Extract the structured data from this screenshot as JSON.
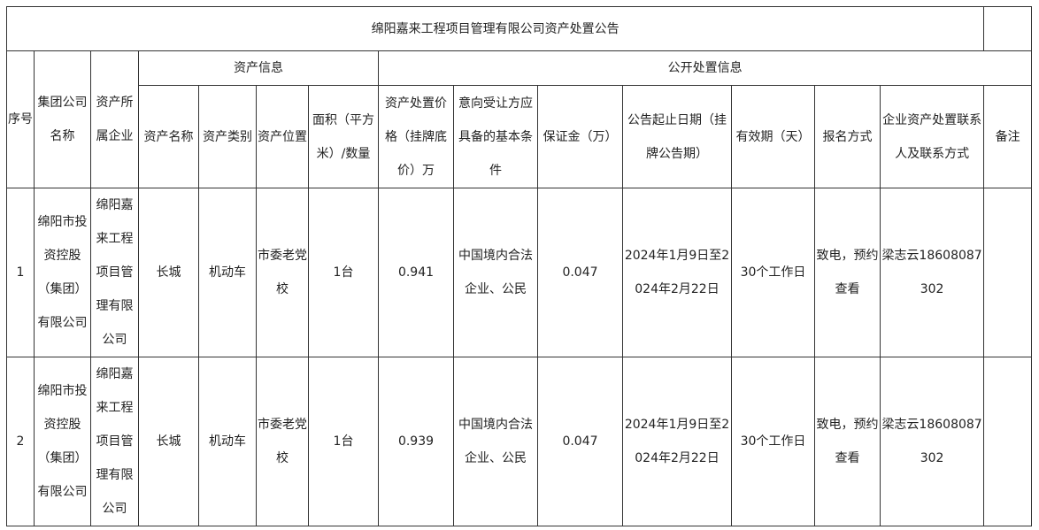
{
  "title": "绵阳嘉来工程项目管理有限公司资产处置公告",
  "group_headers": {
    "asset_info": "资产信息",
    "disposal_info": "公开处置信息"
  },
  "columns": [
    "序号",
    "集团公司名称",
    "资产所属企业",
    "资产名称",
    "资产类别",
    "资产位置",
    "面积（平方米）/数量",
    "资产处置价格（挂牌底价）万",
    "意向受让方应具备的基本条件",
    "保证金（万）",
    "公告起止日期（挂牌公告期）",
    "有效期（天）",
    "报名方式",
    "企业资产处置联系人及联系方式",
    "备注"
  ],
  "rows": [
    [
      "1",
      "绵阳市投资控股（集团）有限公司",
      "绵阳嘉来工程项目管理有限公司",
      "长城",
      "机动车",
      "市委老党校",
      "1台",
      "0.941",
      "中国境内合法企业、公民",
      "0.047",
      "2024年1月9日至2024年2月22日",
      "30个工作日",
      "致电，预约查看",
      "梁志云18608087302",
      ""
    ],
    [
      "2",
      "绵阳市投资控股（集团）有限公司",
      "绵阳嘉来工程项目管理有限公司",
      "长城",
      "机动车",
      "市委老党校",
      "1台",
      "0.939",
      "中国境内合法企业、公民",
      "0.047",
      "2024年1月9日至2024年2月22日",
      "30个工作日",
      "致电，预约查看",
      "梁志云18608087302",
      ""
    ]
  ]
}
